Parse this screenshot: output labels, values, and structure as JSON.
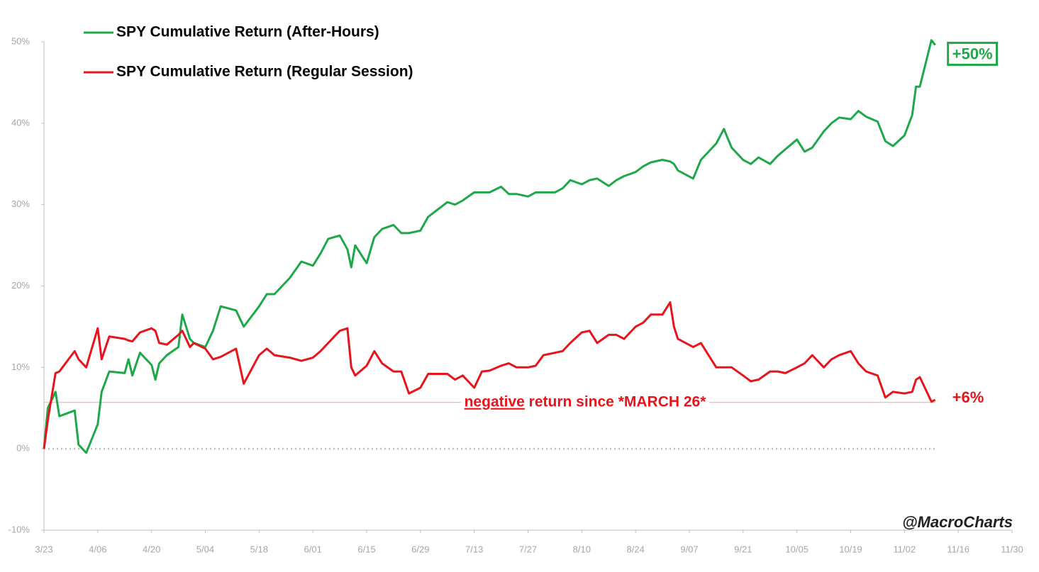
{
  "chart_data": {
    "type": "line",
    "x": [
      "3/23",
      "3/24",
      "3/26",
      "3/27",
      "3/31",
      "4/01",
      "4/03",
      "4/06",
      "4/07",
      "4/09",
      "4/13",
      "4/14",
      "4/15",
      "4/17",
      "4/20",
      "4/21",
      "4/22",
      "4/24",
      "4/27",
      "4/28",
      "4/30",
      "5/01",
      "5/04",
      "5/06",
      "5/08",
      "5/12",
      "5/14",
      "5/18",
      "5/20",
      "5/22",
      "5/26",
      "5/29",
      "6/01",
      "6/03",
      "6/05",
      "6/08",
      "6/10",
      "6/11",
      "6/12",
      "6/15",
      "6/17",
      "6/19",
      "6/22",
      "6/24",
      "6/26",
      "6/29",
      "7/01",
      "7/06",
      "7/08",
      "7/10",
      "7/13",
      "7/15",
      "7/17",
      "7/20",
      "7/22",
      "7/24",
      "7/27",
      "7/29",
      "7/31",
      "8/03",
      "8/05",
      "8/07",
      "8/10",
      "8/12",
      "8/14",
      "8/17",
      "8/19",
      "8/21",
      "8/24",
      "8/26",
      "8/28",
      "8/31",
      "9/02",
      "9/03",
      "9/04",
      "9/08",
      "9/10",
      "9/14",
      "9/16",
      "9/18",
      "9/21",
      "9/23",
      "9/25",
      "9/28",
      "9/30",
      "10/02",
      "10/05",
      "10/07",
      "10/09",
      "10/12",
      "10/14",
      "10/16",
      "10/19",
      "10/21",
      "10/23",
      "10/26",
      "10/28",
      "10/30",
      "11/02",
      "11/04",
      "11/05",
      "11/06",
      "11/09",
      "11/10"
    ],
    "series": [
      {
        "name": "SPY Cumulative Return (After-Hours)",
        "color": "#1fa84a",
        "end_label": "+50%",
        "values": [
          0,
          5,
          7,
          4,
          4.7,
          0.5,
          -0.5,
          3,
          7,
          9.5,
          9.3,
          11,
          9,
          11.8,
          10.3,
          8.5,
          10.5,
          11.5,
          12.5,
          16.5,
          13.5,
          13,
          12.5,
          14.5,
          17.5,
          17,
          15,
          17.5,
          19,
          19,
          21,
          23,
          22.5,
          24,
          25.8,
          26.2,
          24.5,
          22.3,
          25,
          22.8,
          26,
          27,
          27.5,
          26.5,
          26.5,
          26.8,
          28.5,
          30.3,
          30,
          30.5,
          31.5,
          31.5,
          31.5,
          32.2,
          31.3,
          31.3,
          31,
          31.5,
          31.5,
          31.5,
          32,
          33,
          32.5,
          33,
          33.2,
          32.3,
          33,
          33.5,
          34,
          34.7,
          35.2,
          35.5,
          35.3,
          35,
          34.2,
          33.2,
          35.5,
          37.5,
          39.3,
          37,
          35.5,
          35,
          35.8,
          35,
          36,
          36.8,
          38,
          36.5,
          37,
          39,
          40,
          40.7,
          40.5,
          41.5,
          40.8,
          40.2,
          37.8,
          37.2,
          38.5,
          41,
          44.5,
          44.5,
          50.2,
          49.6
        ]
      },
      {
        "name": "SPY Cumulative Return (Regular Session)",
        "color": "#e8141c",
        "end_label": "+6%",
        "values": [
          0,
          3.5,
          9.3,
          9.5,
          12,
          11,
          10,
          14.8,
          11,
          13.8,
          13.5,
          13.3,
          13.2,
          14.3,
          14.8,
          14.5,
          13,
          12.8,
          14,
          14.5,
          12.5,
          13,
          12.3,
          11,
          11.3,
          12.3,
          8,
          11.5,
          12.3,
          11.5,
          11.2,
          10.8,
          11.2,
          12,
          13,
          14.5,
          14.8,
          10,
          9,
          10.2,
          12,
          10.5,
          9.5,
          9.5,
          6.8,
          7.5,
          9.2,
          9.2,
          8.5,
          9,
          7.5,
          9.5,
          9.6,
          10.2,
          10.5,
          10,
          10,
          10.2,
          11.5,
          11.8,
          12,
          13,
          14.3,
          14.5,
          13,
          14,
          14,
          13.5,
          15,
          15.5,
          16.5,
          16.5,
          18,
          15,
          13.5,
          12.5,
          13,
          10,
          10,
          10,
          9,
          8.3,
          8.5,
          9.5,
          9.5,
          9.3,
          10,
          10.5,
          11.5,
          10,
          11,
          11.5,
          12,
          10.5,
          9.5,
          9,
          6.3,
          7,
          6.8,
          7,
          8.5,
          8.8,
          5.8,
          6
        ]
      }
    ],
    "xlim": [
      "3/23",
      "11/30"
    ],
    "xticks": [
      "3/23",
      "4/06",
      "4/20",
      "5/04",
      "5/18",
      "6/01",
      "6/15",
      "6/29",
      "7/13",
      "7/27",
      "8/10",
      "8/24",
      "9/07",
      "9/21",
      "10/05",
      "10/19",
      "11/02",
      "11/16",
      "11/30"
    ],
    "ylim": [
      -10,
      50
    ],
    "yticks": [
      {
        "value": -10,
        "label": "-10%"
      },
      {
        "value": 0,
        "label": "0%"
      },
      {
        "value": 10,
        "label": "10%"
      },
      {
        "value": 20,
        "label": "20%"
      },
      {
        "value": 30,
        "label": "30%"
      },
      {
        "value": 40,
        "label": "40%"
      },
      {
        "value": 50,
        "label": "50%"
      }
    ],
    "baseline": 0,
    "reference_line": {
      "value": 5.7,
      "color": "#f4a0aa"
    },
    "annotation": {
      "emphasis": "negative",
      "text": "return since *MARCH 26*",
      "color": "#e8141c"
    },
    "watermark": "@MacroCharts",
    "legend": "top-left"
  }
}
